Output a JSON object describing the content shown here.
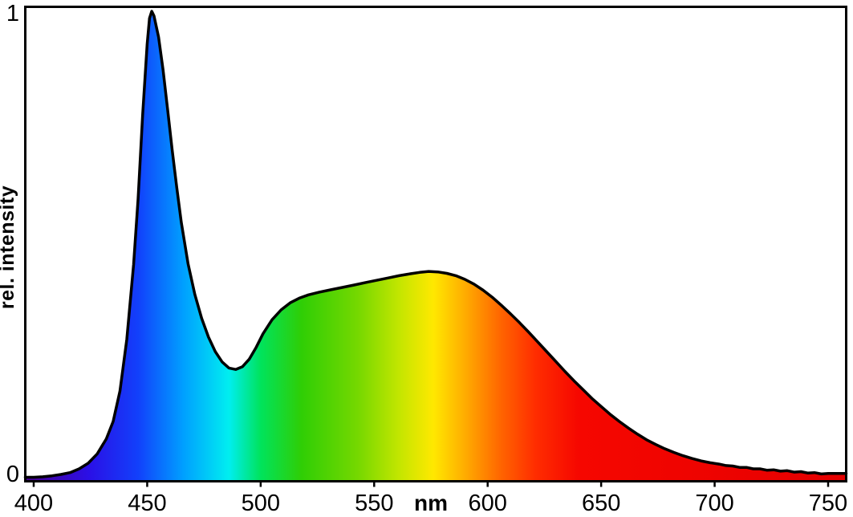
{
  "figure": {
    "background": "#ffffff",
    "frame_color": "#000000",
    "curve_color": "#000000",
    "tick_color": "#000000"
  },
  "chart_data": {
    "type": "area",
    "title": "",
    "xlabel": "nm",
    "ylabel": "rel. intensity",
    "xlim": [
      400,
      750
    ],
    "ylim": [
      0,
      1
    ],
    "xticks": [
      400,
      450,
      500,
      550,
      600,
      650,
      700,
      750
    ],
    "yticks": [
      0,
      1
    ],
    "x": [
      400,
      404,
      408,
      412,
      416,
      420,
      424,
      428,
      432,
      435,
      438,
      441,
      444,
      446,
      448,
      450,
      451,
      452,
      453,
      455,
      457,
      459,
      461,
      463,
      465,
      468,
      471,
      474,
      477,
      480,
      483,
      486,
      489,
      492,
      495,
      498,
      501,
      505,
      509,
      513,
      517,
      521,
      526,
      531,
      536,
      541,
      546,
      551,
      556,
      561,
      566,
      570,
      574,
      578,
      582,
      586,
      590,
      594,
      598,
      602,
      606,
      610,
      614,
      618,
      622,
      626,
      630,
      634,
      638,
      642,
      646,
      650,
      654,
      658,
      662,
      666,
      670,
      674,
      678,
      682,
      686,
      690,
      694,
      698,
      702,
      705,
      708,
      711,
      714,
      717,
      720,
      723,
      726,
      729,
      732,
      735,
      738,
      741,
      744,
      747,
      750
    ],
    "y": [
      0.006,
      0.007,
      0.009,
      0.012,
      0.016,
      0.024,
      0.036,
      0.056,
      0.088,
      0.125,
      0.19,
      0.3,
      0.46,
      0.6,
      0.78,
      0.93,
      0.985,
      1.0,
      0.99,
      0.945,
      0.875,
      0.79,
      0.705,
      0.625,
      0.55,
      0.462,
      0.396,
      0.345,
      0.305,
      0.274,
      0.252,
      0.239,
      0.236,
      0.242,
      0.258,
      0.283,
      0.312,
      0.342,
      0.363,
      0.378,
      0.388,
      0.395,
      0.401,
      0.406,
      0.411,
      0.416,
      0.421,
      0.426,
      0.431,
      0.436,
      0.44,
      0.443,
      0.445,
      0.444,
      0.441,
      0.436,
      0.428,
      0.418,
      0.405,
      0.39,
      0.373,
      0.355,
      0.336,
      0.316,
      0.295,
      0.274,
      0.253,
      0.232,
      0.212,
      0.193,
      0.174,
      0.157,
      0.14,
      0.125,
      0.111,
      0.098,
      0.086,
      0.076,
      0.067,
      0.059,
      0.052,
      0.046,
      0.041,
      0.037,
      0.034,
      0.031,
      0.03,
      0.027,
      0.027,
      0.024,
      0.024,
      0.021,
      0.022,
      0.019,
      0.02,
      0.017,
      0.018,
      0.015,
      0.016,
      0.013,
      0.014
    ],
    "peaks": [
      {
        "nm": 452,
        "intensity": 1.0
      },
      {
        "nm": 575,
        "intensity": 0.445
      }
    ],
    "gradient_stops": [
      {
        "nm": 400,
        "color": "#45009B"
      },
      {
        "nm": 424,
        "color": "#2B0FE6"
      },
      {
        "nm": 446,
        "color": "#1240FB"
      },
      {
        "nm": 466,
        "color": "#00A0FF"
      },
      {
        "nm": 486,
        "color": "#00EEF0"
      },
      {
        "nm": 500,
        "color": "#00E35C"
      },
      {
        "nm": 518,
        "color": "#2FCE05"
      },
      {
        "nm": 543,
        "color": "#76D800"
      },
      {
        "nm": 561,
        "color": "#C3E600"
      },
      {
        "nm": 576,
        "color": "#FFE800"
      },
      {
        "nm": 591,
        "color": "#FFA800"
      },
      {
        "nm": 606,
        "color": "#FF6400"
      },
      {
        "nm": 621,
        "color": "#FF2D00"
      },
      {
        "nm": 640,
        "color": "#F60700"
      },
      {
        "nm": 750,
        "color": "#E60000"
      }
    ]
  }
}
